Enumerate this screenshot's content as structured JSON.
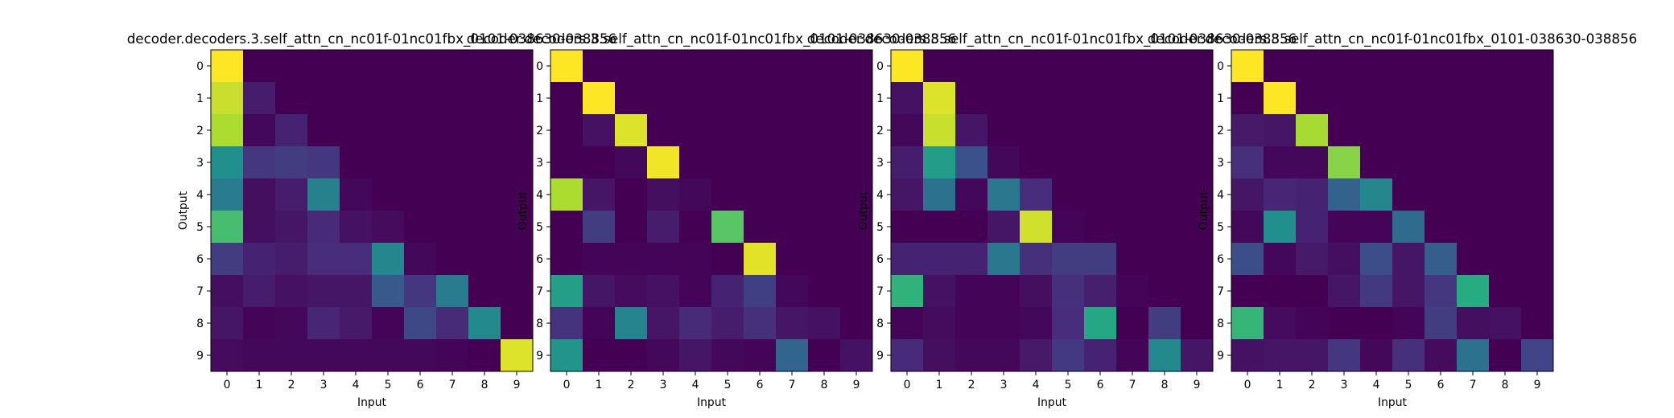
{
  "chart_data": [
    {
      "type": "heatmap",
      "title": "decoder.decoders.3.self_attn_cn_nc01f-01nc01fbx_0101-038630-038856",
      "xlabel": "Input",
      "ylabel": "Output",
      "x_ticks": [
        "0",
        "1",
        "2",
        "3",
        "4",
        "5",
        "6",
        "7",
        "8",
        "9"
      ],
      "y_ticks": [
        "0",
        "1",
        "2",
        "3",
        "4",
        "5",
        "6",
        "7",
        "8",
        "9"
      ],
      "colormap": "viridis",
      "value_range": [
        0,
        1
      ],
      "values": [
        [
          1.0,
          0.0,
          0.0,
          0.0,
          0.0,
          0.0,
          0.0,
          0.0,
          0.0,
          0.0
        ],
        [
          0.92,
          0.08,
          0.0,
          0.0,
          0.0,
          0.0,
          0.0,
          0.0,
          0.0,
          0.0
        ],
        [
          0.88,
          0.02,
          0.1,
          0.0,
          0.0,
          0.0,
          0.0,
          0.0,
          0.0,
          0.0
        ],
        [
          0.5,
          0.16,
          0.18,
          0.16,
          0.0,
          0.0,
          0.0,
          0.0,
          0.0,
          0.0
        ],
        [
          0.42,
          0.04,
          0.08,
          0.44,
          0.02,
          0.0,
          0.0,
          0.0,
          0.0,
          0.0
        ],
        [
          0.7,
          0.04,
          0.06,
          0.12,
          0.05,
          0.03,
          0.0,
          0.0,
          0.0,
          0.0
        ],
        [
          0.18,
          0.1,
          0.08,
          0.13,
          0.13,
          0.46,
          0.02,
          0.0,
          0.0,
          0.0
        ],
        [
          0.04,
          0.08,
          0.05,
          0.06,
          0.06,
          0.28,
          0.16,
          0.42,
          0.0,
          0.0
        ],
        [
          0.06,
          0.01,
          0.02,
          0.11,
          0.07,
          0.01,
          0.22,
          0.12,
          0.47,
          0.0
        ],
        [
          0.03,
          0.02,
          0.02,
          0.02,
          0.02,
          0.02,
          0.02,
          0.01,
          0.0,
          0.95
        ]
      ]
    },
    {
      "type": "heatmap",
      "title": "decoder.decoders.3.self_attn_cn_nc01f-01nc01fbx_0101-038630-038856",
      "xlabel": "Input",
      "ylabel": "Output",
      "x_ticks": [
        "0",
        "1",
        "2",
        "3",
        "4",
        "5",
        "6",
        "7",
        "8",
        "9"
      ],
      "y_ticks": [
        "0",
        "1",
        "2",
        "3",
        "4",
        "5",
        "6",
        "7",
        "8",
        "9"
      ],
      "colormap": "viridis",
      "value_range": [
        0,
        1
      ],
      "values": [
        [
          1.0,
          0.0,
          0.0,
          0.0,
          0.0,
          0.0,
          0.0,
          0.0,
          0.0,
          0.0
        ],
        [
          0.0,
          1.0,
          0.0,
          0.0,
          0.0,
          0.0,
          0.0,
          0.0,
          0.0,
          0.0
        ],
        [
          0.0,
          0.05,
          0.95,
          0.0,
          0.0,
          0.0,
          0.0,
          0.0,
          0.0,
          0.0
        ],
        [
          0.0,
          0.0,
          0.02,
          0.98,
          0.0,
          0.0,
          0.0,
          0.0,
          0.0,
          0.0
        ],
        [
          0.88,
          0.06,
          0.0,
          0.04,
          0.02,
          0.0,
          0.0,
          0.0,
          0.0,
          0.0
        ],
        [
          0.0,
          0.18,
          0.0,
          0.08,
          0.0,
          0.74,
          0.0,
          0.0,
          0.0,
          0.0
        ],
        [
          0.0,
          0.01,
          0.01,
          0.01,
          0.01,
          0.0,
          0.96,
          0.0,
          0.0,
          0.0
        ],
        [
          0.56,
          0.06,
          0.03,
          0.05,
          0.01,
          0.1,
          0.19,
          0.02,
          0.0,
          0.0
        ],
        [
          0.15,
          0.01,
          0.45,
          0.06,
          0.12,
          0.08,
          0.14,
          0.06,
          0.05,
          0.0
        ],
        [
          0.52,
          0.0,
          0.0,
          0.02,
          0.06,
          0.02,
          0.01,
          0.33,
          0.0,
          0.05
        ]
      ]
    },
    {
      "type": "heatmap",
      "title": "decoder.decoders.3.self_attn_cn_nc01f-01nc01fbx_0101-038630-038856",
      "xlabel": "Input",
      "ylabel": "Output",
      "x_ticks": [
        "0",
        "1",
        "2",
        "3",
        "4",
        "5",
        "6",
        "7",
        "8",
        "9"
      ],
      "y_ticks": [
        "0",
        "1",
        "2",
        "3",
        "4",
        "5",
        "6",
        "7",
        "8",
        "9"
      ],
      "colormap": "viridis",
      "value_range": [
        0,
        1
      ],
      "values": [
        [
          1.0,
          0.0,
          0.0,
          0.0,
          0.0,
          0.0,
          0.0,
          0.0,
          0.0,
          0.0
        ],
        [
          0.05,
          0.95,
          0.0,
          0.0,
          0.0,
          0.0,
          0.0,
          0.0,
          0.0,
          0.0
        ],
        [
          0.02,
          0.92,
          0.06,
          0.0,
          0.0,
          0.0,
          0.0,
          0.0,
          0.0,
          0.0
        ],
        [
          0.08,
          0.55,
          0.25,
          0.02,
          0.0,
          0.0,
          0.0,
          0.0,
          0.0,
          0.0
        ],
        [
          0.06,
          0.38,
          0.02,
          0.4,
          0.13,
          0.0,
          0.0,
          0.0,
          0.0,
          0.0
        ],
        [
          0.0,
          0.0,
          0.0,
          0.06,
          0.93,
          0.01,
          0.0,
          0.0,
          0.0,
          0.0
        ],
        [
          0.1,
          0.1,
          0.1,
          0.4,
          0.14,
          0.18,
          0.18,
          0.0,
          0.0,
          0.0
        ],
        [
          0.65,
          0.05,
          0.01,
          0.01,
          0.04,
          0.14,
          0.09,
          0.01,
          0.0,
          0.0
        ],
        [
          0.01,
          0.03,
          0.01,
          0.01,
          0.02,
          0.13,
          0.6,
          0.0,
          0.18,
          0.0
        ],
        [
          0.12,
          0.04,
          0.02,
          0.02,
          0.07,
          0.17,
          0.1,
          0.01,
          0.47,
          0.06
        ]
      ]
    },
    {
      "type": "heatmap",
      "title": "decoder.decoders.3.self_attn_cn_nc01f-01nc01fbx_0101-038630-038856",
      "xlabel": "Input",
      "ylabel": "Output",
      "x_ticks": [
        "0",
        "1",
        "2",
        "3",
        "4",
        "5",
        "6",
        "7",
        "8",
        "9"
      ],
      "y_ticks": [
        "0",
        "1",
        "2",
        "3",
        "4",
        "5",
        "6",
        "7",
        "8",
        "9"
      ],
      "colormap": "viridis",
      "value_range": [
        0,
        1
      ],
      "values": [
        [
          1.0,
          0.0,
          0.0,
          0.0,
          0.0,
          0.0,
          0.0,
          0.0,
          0.0,
          0.0
        ],
        [
          0.0,
          1.0,
          0.0,
          0.0,
          0.0,
          0.0,
          0.0,
          0.0,
          0.0,
          0.0
        ],
        [
          0.07,
          0.06,
          0.87,
          0.0,
          0.0,
          0.0,
          0.0,
          0.0,
          0.0,
          0.0
        ],
        [
          0.14,
          0.02,
          0.02,
          0.82,
          0.0,
          0.0,
          0.0,
          0.0,
          0.0,
          0.0
        ],
        [
          0.06,
          0.11,
          0.1,
          0.32,
          0.46,
          0.0,
          0.0,
          0.0,
          0.0,
          0.0
        ],
        [
          0.02,
          0.5,
          0.1,
          0.01,
          0.01,
          0.35,
          0.0,
          0.0,
          0.0,
          0.0
        ],
        [
          0.24,
          0.02,
          0.07,
          0.04,
          0.24,
          0.06,
          0.3,
          0.0,
          0.0,
          0.0
        ],
        [
          0.0,
          0.0,
          0.0,
          0.06,
          0.17,
          0.06,
          0.16,
          0.62,
          0.0,
          0.0
        ],
        [
          0.66,
          0.03,
          0.01,
          0.0,
          0.0,
          0.01,
          0.18,
          0.04,
          0.05,
          0.0
        ],
        [
          0.05,
          0.06,
          0.06,
          0.16,
          0.02,
          0.14,
          0.03,
          0.38,
          0.0,
          0.21
        ]
      ]
    }
  ]
}
